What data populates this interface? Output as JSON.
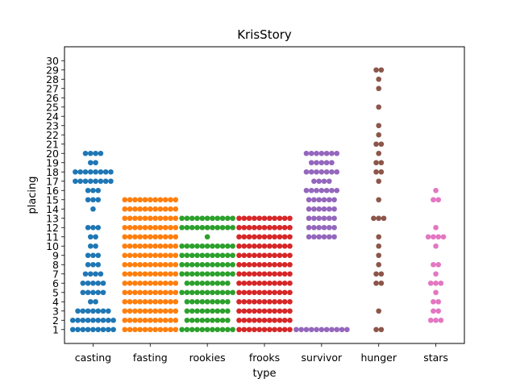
{
  "chart_data": {
    "type": "scatter",
    "subtype": "swarm",
    "title": "KrisStory",
    "xlabel": "type",
    "ylabel": "placing",
    "categories": [
      "casting",
      "fasting",
      "rookies",
      "frooks",
      "survivor",
      "hunger",
      "stars"
    ],
    "ylim": [
      -0.5,
      31.5
    ],
    "yticks": [
      1,
      2,
      3,
      4,
      5,
      6,
      7,
      8,
      9,
      10,
      11,
      12,
      13,
      14,
      15,
      16,
      17,
      18,
      19,
      20,
      21,
      22,
      23,
      24,
      25,
      26,
      27,
      28,
      29,
      30
    ],
    "grid": false,
    "legend": "none",
    "colors": [
      "#1f77b4",
      "#ff7f0e",
      "#2ca02c",
      "#d62728",
      "#9467bd",
      "#8c564b",
      "#e377c2"
    ],
    "series": [
      {
        "category": "casting",
        "points": [
          [
            1,
            9
          ],
          [
            2,
            9
          ],
          [
            3,
            7
          ],
          [
            4,
            2
          ],
          [
            5,
            5
          ],
          [
            6,
            5
          ],
          [
            7,
            4
          ],
          [
            8,
            3
          ],
          [
            9,
            3
          ],
          [
            10,
            2
          ],
          [
            11,
            2
          ],
          [
            12,
            3
          ],
          [
            13,
            0
          ],
          [
            14,
            1
          ],
          [
            15,
            3
          ],
          [
            16,
            3
          ],
          [
            17,
            8
          ],
          [
            18,
            8
          ],
          [
            19,
            2
          ],
          [
            20,
            4
          ]
        ]
      },
      {
        "category": "fasting",
        "points": [
          [
            1,
            11
          ],
          [
            2,
            11
          ],
          [
            3,
            11
          ],
          [
            4,
            11
          ],
          [
            5,
            11
          ],
          [
            6,
            11
          ],
          [
            7,
            11
          ],
          [
            8,
            11
          ],
          [
            9,
            11
          ],
          [
            10,
            11
          ],
          [
            11,
            11
          ],
          [
            12,
            11
          ],
          [
            13,
            11
          ],
          [
            14,
            11
          ],
          [
            15,
            11
          ]
        ]
      },
      {
        "category": "rookies",
        "points": [
          [
            1,
            11
          ],
          [
            2,
            9
          ],
          [
            3,
            9
          ],
          [
            4,
            9
          ],
          [
            5,
            11
          ],
          [
            6,
            9
          ],
          [
            7,
            11
          ],
          [
            8,
            11
          ],
          [
            9,
            11
          ],
          [
            10,
            11
          ],
          [
            11,
            1
          ],
          [
            12,
            11
          ],
          [
            13,
            11
          ]
        ]
      },
      {
        "category": "frooks",
        "points": [
          [
            1,
            11
          ],
          [
            2,
            11
          ],
          [
            3,
            11
          ],
          [
            4,
            11
          ],
          [
            5,
            11
          ],
          [
            6,
            11
          ],
          [
            7,
            11
          ],
          [
            8,
            11
          ],
          [
            9,
            11
          ],
          [
            10,
            11
          ],
          [
            11,
            11
          ],
          [
            12,
            11
          ],
          [
            13,
            11
          ]
        ]
      },
      {
        "category": "survivor",
        "points": [
          [
            1,
            11
          ],
          [
            11,
            6
          ],
          [
            12,
            6
          ],
          [
            13,
            6
          ],
          [
            14,
            6
          ],
          [
            15,
            6
          ],
          [
            16,
            7
          ],
          [
            17,
            4
          ],
          [
            18,
            7
          ],
          [
            19,
            5
          ],
          [
            20,
            7
          ]
        ]
      },
      {
        "category": "hunger",
        "points": [
          [
            1,
            2
          ],
          [
            3,
            1
          ],
          [
            6,
            2
          ],
          [
            7,
            2
          ],
          [
            8,
            1
          ],
          [
            9,
            1
          ],
          [
            10,
            1
          ],
          [
            11,
            1
          ],
          [
            13,
            3
          ],
          [
            15,
            1
          ],
          [
            17,
            1
          ],
          [
            18,
            2
          ],
          [
            19,
            2
          ],
          [
            20,
            1
          ],
          [
            21,
            2
          ],
          [
            22,
            1
          ],
          [
            23,
            1
          ],
          [
            25,
            1
          ],
          [
            27,
            1
          ],
          [
            28,
            1
          ],
          [
            29,
            2
          ]
        ]
      },
      {
        "category": "stars",
        "points": [
          [
            2,
            3
          ],
          [
            3,
            2
          ],
          [
            4,
            2
          ],
          [
            5,
            1
          ],
          [
            6,
            3
          ],
          [
            7,
            1
          ],
          [
            8,
            2
          ],
          [
            10,
            1
          ],
          [
            11,
            4
          ],
          [
            12,
            1
          ],
          [
            15,
            2
          ],
          [
            16,
            1
          ]
        ]
      }
    ]
  }
}
